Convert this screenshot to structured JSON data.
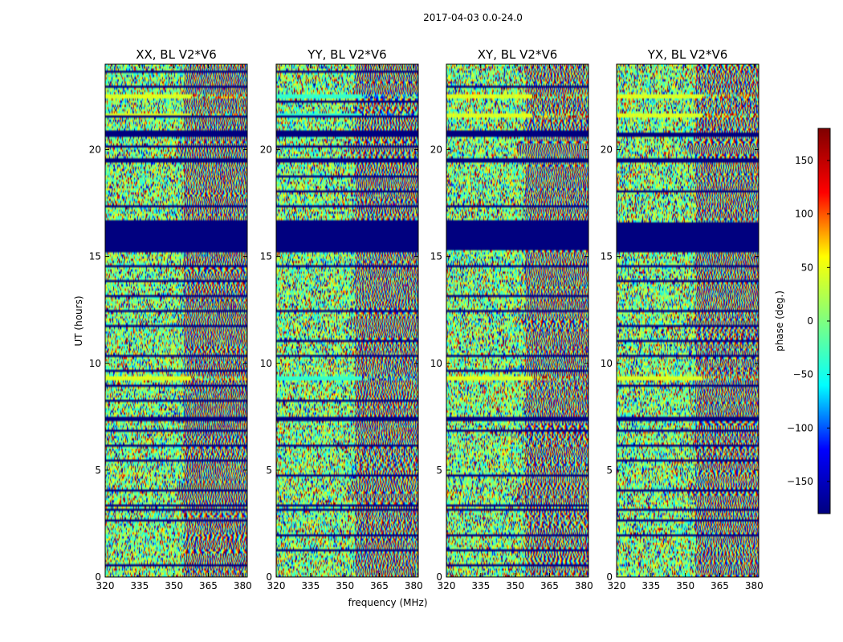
{
  "chart_data": {
    "type": "heatmap",
    "title": "2017-04-03 0.0-24.0",
    "xlabel": "frequency (MHz)",
    "ylabel": "UT (hours)",
    "xlim": [
      320,
      382
    ],
    "ylim": [
      0,
      24
    ],
    "xticks": [
      320,
      335,
      350,
      365,
      380
    ],
    "yticks": [
      0,
      5,
      10,
      15,
      20
    ],
    "panels": [
      {
        "name": "XX",
        "title": "XX, BL V2*V6"
      },
      {
        "name": "YY",
        "title": "YY, BL V2*V6"
      },
      {
        "name": "XY",
        "title": "XY, BL V2*V6"
      },
      {
        "name": "YX",
        "title": "YX, BL V2*V6"
      }
    ],
    "colorbar": {
      "label": "phase (deg.)",
      "range": [
        -180,
        180
      ],
      "ticks": [
        -150,
        -100,
        -50,
        0,
        50,
        100,
        150
      ],
      "tick_labels": [
        "−150",
        "−100",
        "−50",
        "0",
        "50",
        "100",
        "150"
      ],
      "colormap": "jet",
      "colormap_stops": [
        "#00007f",
        "#0000ff",
        "#00ffff",
        "#7fff7f",
        "#ffff00",
        "#ff0000",
        "#7f0000"
      ]
    },
    "flagged_ut_bands_hours": [
      [
        15.3,
        16.6
      ],
      [
        20.6,
        20.8
      ],
      [
        19.4,
        19.6
      ],
      [
        7.3,
        7.5
      ],
      [
        3.1,
        3.2
      ]
    ],
    "bright_ut_bands_hours": [
      [
        9.2,
        9.4
      ],
      [
        22.4,
        22.6
      ],
      [
        21.5,
        21.7
      ]
    ],
    "fringe_ut_bands_hours": [
      [
        19.8,
        20.4
      ],
      [
        11.8,
        12.1
      ],
      [
        3.6,
        4.3
      ]
    ]
  }
}
